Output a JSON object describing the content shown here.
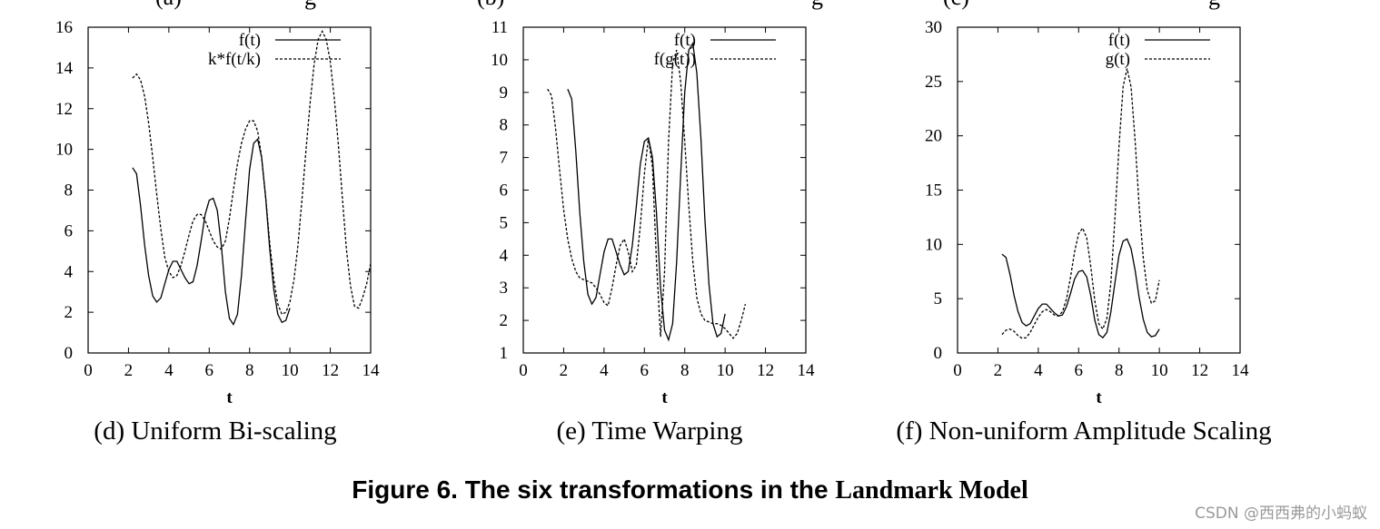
{
  "top_cut_labels": [
    {
      "text": "(a)",
      "tail": "g"
    },
    {
      "text": "(b)",
      "tail": "g"
    },
    {
      "text": "(c)",
      "tail": "g"
    }
  ],
  "chart_data": [
    {
      "type": "line",
      "caption": "(d) Uniform Bi-scaling",
      "xlabel": "t",
      "ylabel": "",
      "xlim": [
        0,
        14
      ],
      "ylim": [
        0,
        16
      ],
      "xticks": [
        0,
        2,
        4,
        6,
        8,
        10,
        12,
        14
      ],
      "yticks": [
        0,
        2,
        4,
        6,
        8,
        10,
        12,
        14,
        16
      ],
      "grid": false,
      "legend_position": "top-right",
      "series": [
        {
          "name": "f(t)",
          "style": "solid",
          "x": [
            2.2,
            2.4,
            2.6,
            2.8,
            3.0,
            3.2,
            3.4,
            3.6,
            3.8,
            4.0,
            4.2,
            4.4,
            4.6,
            4.8,
            5.0,
            5.2,
            5.4,
            5.6,
            5.8,
            6.0,
            6.2,
            6.4,
            6.6,
            6.8,
            7.0,
            7.2,
            7.4,
            7.6,
            7.8,
            8.0,
            8.2,
            8.4,
            8.6,
            8.8,
            9.0,
            9.2,
            9.4,
            9.6,
            9.8,
            10.0
          ],
          "y": [
            9.1,
            8.8,
            7.2,
            5.3,
            3.8,
            2.8,
            2.5,
            2.7,
            3.4,
            4.1,
            4.5,
            4.5,
            4.1,
            3.7,
            3.4,
            3.5,
            4.3,
            5.5,
            6.8,
            7.5,
            7.6,
            7.0,
            5.3,
            3.0,
            1.7,
            1.4,
            1.9,
            3.8,
            6.5,
            9.0,
            10.3,
            10.5,
            9.6,
            7.6,
            5.1,
            3.1,
            1.9,
            1.5,
            1.6,
            2.2
          ]
        },
        {
          "name": "k*f(t/k)",
          "style": "dashed",
          "x": [
            2.2,
            2.4,
            2.6,
            2.8,
            3.0,
            3.2,
            3.4,
            3.6,
            3.8,
            4.0,
            4.2,
            4.4,
            4.6,
            4.8,
            5.0,
            5.2,
            5.4,
            5.6,
            5.8,
            6.0,
            6.2,
            6.4,
            6.6,
            6.8,
            7.0,
            7.2,
            7.4,
            7.6,
            7.8,
            8.0,
            8.2,
            8.4,
            8.6,
            8.8,
            9.0,
            9.2,
            9.4,
            9.6,
            9.8,
            10.0,
            10.2,
            10.4,
            10.6,
            10.8,
            11.0,
            11.2,
            11.4,
            11.6,
            11.8,
            12.0,
            12.2,
            12.4,
            12.6,
            12.8,
            13.0,
            13.2,
            13.4,
            13.6,
            13.8,
            14.0
          ],
          "y": [
            13.5,
            13.7,
            13.4,
            12.6,
            11.3,
            9.6,
            7.8,
            6.1,
            4.7,
            4.0,
            3.7,
            3.8,
            4.3,
            5.0,
            5.8,
            6.5,
            6.8,
            6.8,
            6.5,
            6.0,
            5.5,
            5.2,
            5.1,
            5.5,
            6.6,
            8.0,
            9.3,
            10.3,
            11.0,
            11.4,
            11.4,
            10.9,
            9.6,
            7.6,
            5.4,
            3.6,
            2.4,
            1.9,
            2.0,
            2.5,
            3.6,
            5.3,
            7.6,
            10.0,
            12.3,
            14.2,
            15.4,
            15.8,
            15.4,
            14.3,
            12.5,
            10.2,
            7.6,
            5.1,
            3.3,
            2.3,
            2.2,
            2.7,
            3.4,
            4.4
          ]
        }
      ]
    },
    {
      "type": "line",
      "caption": "(e) Time Warping",
      "xlabel": "t",
      "ylabel": "",
      "xlim": [
        0,
        14
      ],
      "ylim": [
        1,
        11
      ],
      "xticks": [
        0,
        2,
        4,
        6,
        8,
        10,
        12,
        14
      ],
      "yticks": [
        1,
        2,
        3,
        4,
        5,
        6,
        7,
        8,
        9,
        10,
        11
      ],
      "grid": false,
      "legend_position": "top-right",
      "series": [
        {
          "name": "f(t)",
          "style": "solid",
          "x": [
            2.2,
            2.4,
            2.6,
            2.8,
            3.0,
            3.2,
            3.4,
            3.6,
            3.8,
            4.0,
            4.2,
            4.4,
            4.6,
            4.8,
            5.0,
            5.2,
            5.4,
            5.6,
            5.8,
            6.0,
            6.2,
            6.4,
            6.6,
            6.8,
            7.0,
            7.2,
            7.4,
            7.6,
            7.8,
            8.0,
            8.2,
            8.4,
            8.6,
            8.8,
            9.0,
            9.2,
            9.4,
            9.6,
            9.8,
            10.0
          ],
          "y": [
            9.1,
            8.8,
            7.2,
            5.3,
            3.8,
            2.8,
            2.5,
            2.7,
            3.4,
            4.1,
            4.5,
            4.5,
            4.1,
            3.7,
            3.4,
            3.5,
            4.3,
            5.5,
            6.8,
            7.5,
            7.6,
            7.0,
            5.3,
            3.0,
            1.7,
            1.4,
            1.9,
            3.8,
            6.5,
            9.0,
            10.3,
            10.5,
            9.6,
            7.6,
            5.1,
            3.1,
            1.9,
            1.5,
            1.6,
            2.2
          ]
        },
        {
          "name": "f(g(t))",
          "style": "dashed",
          "x": [
            1.2,
            1.4,
            1.6,
            1.8,
            2.0,
            2.2,
            2.4,
            2.6,
            2.8,
            3.0,
            3.2,
            3.4,
            3.6,
            3.8,
            4.0,
            4.2,
            4.4,
            4.6,
            4.8,
            5.0,
            5.2,
            5.4,
            5.6,
            5.8,
            6.0,
            6.2,
            6.4,
            6.6,
            6.8,
            7.0,
            7.2,
            7.4,
            7.6,
            7.8,
            8.0,
            8.2,
            8.4,
            8.6,
            8.8,
            9.0,
            9.2,
            9.4,
            9.6,
            9.8,
            10.0,
            10.2,
            10.4,
            10.6,
            10.8,
            11.0
          ],
          "y": [
            9.1,
            8.9,
            7.9,
            6.6,
            5.4,
            4.5,
            3.9,
            3.5,
            3.3,
            3.25,
            3.2,
            3.15,
            3.0,
            2.8,
            2.55,
            2.45,
            3.0,
            3.7,
            4.3,
            4.5,
            4.1,
            3.5,
            3.7,
            4.9,
            6.5,
            7.6,
            6.7,
            3.8,
            1.5,
            3.5,
            7.5,
            9.9,
            10.3,
            9.3,
            7.5,
            5.5,
            3.8,
            2.7,
            2.2,
            2.0,
            1.95,
            1.9,
            1.9,
            1.85,
            1.75,
            1.6,
            1.45,
            1.6,
            2.0,
            2.5
          ]
        }
      ]
    },
    {
      "type": "line",
      "caption": "(f) Non-uniform Amplitude Scaling",
      "xlabel": "t",
      "ylabel": "",
      "xlim": [
        0,
        14
      ],
      "ylim": [
        0,
        30
      ],
      "xticks": [
        0,
        2,
        4,
        6,
        8,
        10,
        12,
        14
      ],
      "yticks": [
        0,
        5,
        10,
        15,
        20,
        25,
        30
      ],
      "grid": false,
      "legend_position": "top-right",
      "series": [
        {
          "name": "f(t)",
          "style": "solid",
          "x": [
            2.2,
            2.4,
            2.6,
            2.8,
            3.0,
            3.2,
            3.4,
            3.6,
            3.8,
            4.0,
            4.2,
            4.4,
            4.6,
            4.8,
            5.0,
            5.2,
            5.4,
            5.6,
            5.8,
            6.0,
            6.2,
            6.4,
            6.6,
            6.8,
            7.0,
            7.2,
            7.4,
            7.6,
            7.8,
            8.0,
            8.2,
            8.4,
            8.6,
            8.8,
            9.0,
            9.2,
            9.4,
            9.6,
            9.8,
            10.0
          ],
          "y": [
            9.1,
            8.8,
            7.2,
            5.3,
            3.8,
            2.8,
            2.5,
            2.7,
            3.4,
            4.1,
            4.5,
            4.5,
            4.1,
            3.7,
            3.4,
            3.5,
            4.3,
            5.5,
            6.8,
            7.5,
            7.6,
            7.0,
            5.3,
            3.0,
            1.7,
            1.4,
            1.9,
            3.8,
            6.5,
            9.0,
            10.3,
            10.5,
            9.6,
            7.6,
            5.1,
            3.1,
            1.9,
            1.5,
            1.6,
            2.2
          ]
        },
        {
          "name": "g(t)",
          "style": "dashed",
          "x": [
            2.2,
            2.4,
            2.6,
            2.8,
            3.0,
            3.2,
            3.4,
            3.6,
            3.8,
            4.0,
            4.2,
            4.4,
            4.6,
            4.8,
            5.0,
            5.2,
            5.4,
            5.6,
            5.8,
            6.0,
            6.2,
            6.4,
            6.6,
            6.8,
            7.0,
            7.2,
            7.4,
            7.6,
            7.8,
            8.0,
            8.2,
            8.4,
            8.6,
            8.8,
            9.0,
            9.2,
            9.4,
            9.6,
            9.8,
            10.0
          ],
          "y": [
            1.7,
            2.1,
            2.2,
            2.0,
            1.6,
            1.35,
            1.4,
            1.9,
            2.6,
            3.3,
            3.8,
            4.0,
            3.8,
            3.5,
            3.4,
            3.8,
            5.0,
            7.0,
            9.3,
            11.0,
            11.5,
            10.6,
            8.0,
            4.8,
            2.7,
            2.2,
            3.2,
            6.5,
            12.5,
            19.0,
            24.5,
            26.2,
            24.5,
            19.5,
            13.5,
            8.8,
            5.8,
            4.6,
            4.8,
            6.7
          ]
        }
      ]
    }
  ],
  "figure_caption": {
    "main": "Figure 6. The six transformations in the ",
    "tail": "Landmark Model"
  },
  "watermark": "CSDN @西西弗的小蚂蚁"
}
